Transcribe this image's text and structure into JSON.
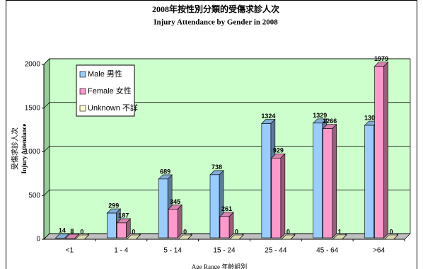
{
  "chart_data": {
    "type": "bar3d",
    "title": "2008年按性別分類的受傷求診人次",
    "subtitle": "Injury Attendance by Gender in 2008",
    "y_label": [
      "受傷求診人次",
      "Injury Attendance"
    ],
    "x_label": "Age Range 年齡組別",
    "categories": [
      "<1",
      "1 - 4",
      "5 - 14",
      "15 - 24",
      "25 - 44",
      "45 - 64",
      ">64"
    ],
    "series": [
      {
        "name": "Male  男性",
        "color": "#99ccff",
        "values": [
          14,
          299,
          689,
          738,
          1324,
          1329,
          1303
        ]
      },
      {
        "name": "Female  女性",
        "color": "#ff99cc",
        "values": [
          8,
          187,
          345,
          261,
          929,
          1266,
          1979
        ]
      },
      {
        "name": "Unknown  不詳",
        "color": "#ffffcc",
        "values": [
          0,
          0,
          0,
          0,
          0,
          1,
          0
        ]
      }
    ],
    "ylim": [
      0,
      2000
    ],
    "yticks": [
      0,
      500,
      1000,
      1500,
      2000
    ],
    "grid": true
  }
}
